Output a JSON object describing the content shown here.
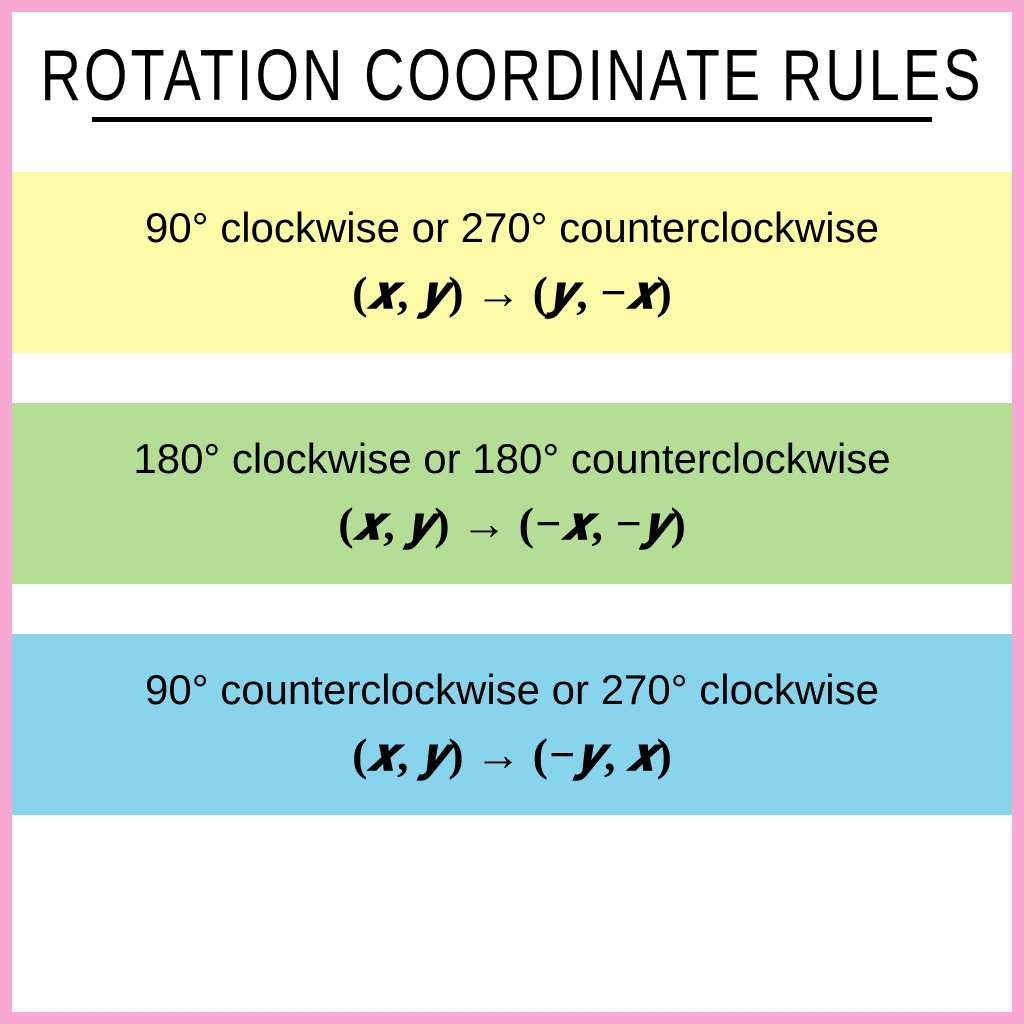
{
  "title": "ROTATION COORDINATE RULES",
  "border_color": "#f9a8d4",
  "background_color": "#ffffff",
  "title_underline_color": "#000000",
  "rules": [
    {
      "background": "#fdfaa8",
      "description": "90° clockwise or 270° counterclockwise",
      "formula_html": "<span class='paren'>(</span>𝒙<span class='comma'>,</span> 𝒚<span class='paren'>)</span> <span class='arrow'>→</span> <span class='paren'>(</span>𝒚<span class='comma'>,</span> −𝒙<span class='paren'>)</span>"
    },
    {
      "background": "#b4dd96",
      "description": "180° clockwise or 180° counterclockwise",
      "formula_html": "<span class='paren'>(</span>𝒙<span class='comma'>,</span> 𝒚<span class='paren'>)</span> <span class='arrow'>→</span> <span class='paren'>(</span>−𝒙<span class='comma'>,</span> −𝒚<span class='paren'>)</span>"
    },
    {
      "background": "#88d4ed",
      "description": "90° counterclockwise or 270° clockwise",
      "formula_html": "<span class='paren'>(</span>𝒙<span class='comma'>,</span> 𝒚<span class='paren'>)</span> <span class='arrow'>→</span> <span class='paren'>(</span>−𝒚<span class='comma'>,</span> 𝒙<span class='paren'>)</span>"
    }
  ]
}
